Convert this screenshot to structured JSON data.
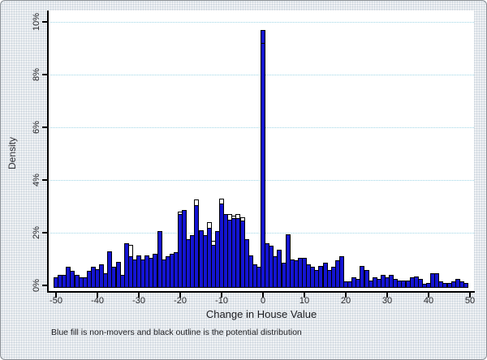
{
  "figure": {
    "y_axis": {
      "title": "Density",
      "tick_labels": [
        "0%",
        "2%",
        "4%",
        "6%",
        "8%",
        "10%"
      ]
    },
    "x_axis": {
      "title": "Change in House Value",
      "tick_values": [
        -50,
        -40,
        -30,
        -20,
        -10,
        0,
        10,
        20,
        30,
        40,
        50
      ]
    },
    "note": "Blue fill is non-movers and black outline is the potential distribution"
  },
  "colors": {
    "bar_fill_blue": "#1414d2",
    "bar_outline_black": "#000000",
    "gridline_light_blue": "#9fd6e6",
    "axis_black": "#000000",
    "plot_background": "#ffffff",
    "page_background": "#f0f2f4"
  },
  "chart_data": {
    "type": "bar",
    "title": "",
    "xlabel": "Change in House Value",
    "ylabel": "Density",
    "note": "Blue fill is non-movers and black outline is the potential distribution",
    "xlim": [
      -52,
      51
    ],
    "ylim_percent": [
      0,
      10.5
    ],
    "gridlines_percent": [
      2,
      4,
      6,
      8,
      10
    ],
    "grid_style": "horizontal dotted light blue",
    "legend_position": "none",
    "bin_width": 1,
    "x_start": -50,
    "series": [
      {
        "name": "non-movers (blue fill)",
        "values_percent": [
          0.3,
          0.4,
          0.4,
          0.7,
          0.55,
          0.4,
          0.3,
          0.3,
          0.55,
          0.7,
          0.62,
          0.8,
          0.45,
          1.3,
          0.7,
          0.9,
          0.4,
          1.6,
          1.1,
          1.0,
          1.15,
          1.0,
          1.15,
          1.05,
          1.2,
          2.05,
          1.0,
          1.1,
          1.2,
          1.25,
          2.7,
          2.85,
          1.75,
          1.9,
          3.05,
          2.1,
          1.9,
          2.2,
          1.55,
          2.05,
          3.1,
          2.7,
          2.5,
          2.55,
          2.55,
          2.45,
          1.75,
          1.15,
          0.8,
          0.7,
          9.7,
          1.6,
          1.5,
          1.1,
          1.35,
          0.85,
          1.95,
          1.0,
          0.95,
          1.05,
          1.05,
          0.8,
          0.7,
          0.6,
          0.75,
          0.85,
          0.6,
          0.7,
          0.95,
          1.1,
          0.15,
          0.15,
          0.3,
          0.25,
          0.75,
          0.6,
          0.2,
          0.3,
          0.25,
          0.4,
          0.3,
          0.4,
          0.25,
          0.2,
          0.2,
          0.2,
          0.3,
          0.35,
          0.25,
          0.05,
          0.1,
          0.45,
          0.45,
          0.15,
          0.1,
          0.1,
          0.15,
          0.25,
          0.15,
          0.1
        ]
      },
      {
        "name": "potential distribution (black outline)",
        "values_percent": [
          0.3,
          0.4,
          0.4,
          0.7,
          0.55,
          0.4,
          0.3,
          0.3,
          0.55,
          0.7,
          0.62,
          0.8,
          0.45,
          1.3,
          0.7,
          0.9,
          0.4,
          1.6,
          1.55,
          1.0,
          1.15,
          1.0,
          1.15,
          1.05,
          1.2,
          2.05,
          1.0,
          1.1,
          1.2,
          1.25,
          2.8,
          2.85,
          1.75,
          1.9,
          3.25,
          2.1,
          1.9,
          2.4,
          1.7,
          2.05,
          3.3,
          2.7,
          2.7,
          2.65,
          2.7,
          2.6,
          1.75,
          1.15,
          0.8,
          0.7,
          9.2,
          1.6,
          1.5,
          1.1,
          1.35,
          0.85,
          1.95,
          1.0,
          0.95,
          1.05,
          1.05,
          0.8,
          0.7,
          0.6,
          0.75,
          0.85,
          0.6,
          0.7,
          0.95,
          1.1,
          0.15,
          0.15,
          0.3,
          0.25,
          0.75,
          0.6,
          0.2,
          0.3,
          0.25,
          0.4,
          0.3,
          0.4,
          0.25,
          0.2,
          0.2,
          0.2,
          0.3,
          0.35,
          0.25,
          0.05,
          0.1,
          0.45,
          0.45,
          0.15,
          0.1,
          0.1,
          0.15,
          0.25,
          0.15,
          0.1
        ]
      }
    ]
  }
}
